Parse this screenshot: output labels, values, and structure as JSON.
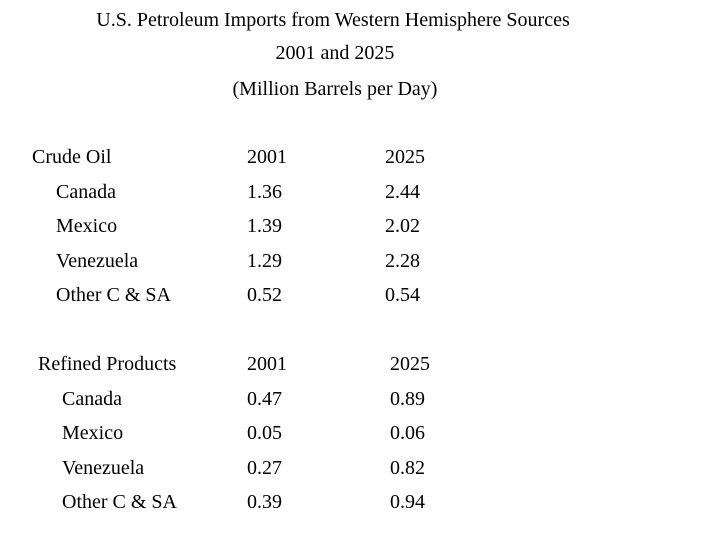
{
  "title": {
    "lines": [
      "U.S. Petroleum Imports from Western Hemisphere Sources",
      "2001 and 2025",
      "(Million Barrels per Day)"
    ]
  },
  "sections": [
    {
      "heading": "Crude Oil",
      "col1": "2001",
      "col2": "2025",
      "rows": [
        [
          "Canada",
          "1.36",
          "2.44"
        ],
        [
          "Mexico",
          "1.39",
          "2.02"
        ],
        [
          "Venezuela",
          "1.29",
          "2.28"
        ],
        [
          "Other C & SA",
          "0.52",
          "0.54"
        ]
      ]
    },
    {
      "heading": "Refined Products",
      "col1": "2001",
      "col2": "2025",
      "rows": [
        [
          "Canada",
          "0.47",
          "0.89"
        ],
        [
          "Mexico",
          "0.05",
          "0.06"
        ],
        [
          "Venezuela",
          "0.27",
          "0.82"
        ],
        [
          "Other C & SA",
          "0.39",
          "0.94"
        ]
      ]
    }
  ]
}
